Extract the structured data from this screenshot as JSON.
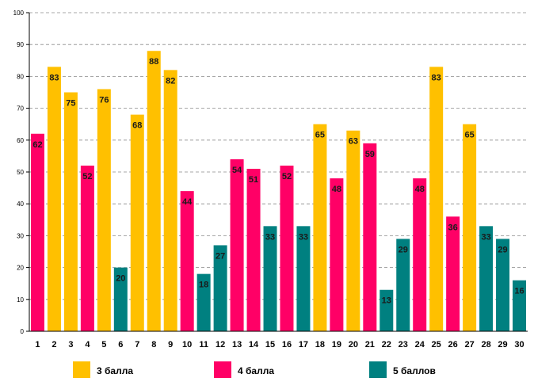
{
  "chart_data": {
    "type": "bar",
    "title": "",
    "xlabel": "",
    "ylabel": "",
    "ylim": [
      0,
      100
    ],
    "ytick_step": 10,
    "grid": true,
    "legend_position": "bottom",
    "categories": [
      "1",
      "2",
      "3",
      "4",
      "5",
      "6",
      "7",
      "8",
      "9",
      "10",
      "11",
      "12",
      "13",
      "14",
      "15",
      "16",
      "17",
      "18",
      "19",
      "20",
      "21",
      "22",
      "23",
      "24",
      "25",
      "26",
      "27",
      "28",
      "29",
      "30"
    ],
    "values": [
      62,
      83,
      75,
      52,
      76,
      20,
      68,
      88,
      82,
      44,
      18,
      27,
      54,
      51,
      33,
      52,
      33,
      65,
      48,
      63,
      59,
      13,
      29,
      48,
      83,
      36,
      65,
      33,
      29,
      16
    ],
    "groups": [
      "4",
      "3",
      "3",
      "4",
      "3",
      "5",
      "3",
      "3",
      "3",
      "4",
      "5",
      "5",
      "4",
      "4",
      "5",
      "4",
      "5",
      "3",
      "4",
      "3",
      "4",
      "5",
      "5",
      "4",
      "3",
      "4",
      "3",
      "5",
      "5",
      "5"
    ],
    "series": [
      {
        "key": "3",
        "name": "3 балла",
        "color": "#FFC000"
      },
      {
        "key": "4",
        "name": "4 балла",
        "color": "#FF0066"
      },
      {
        "key": "5",
        "name": "5 баллов",
        "color": "#008080"
      }
    ]
  }
}
